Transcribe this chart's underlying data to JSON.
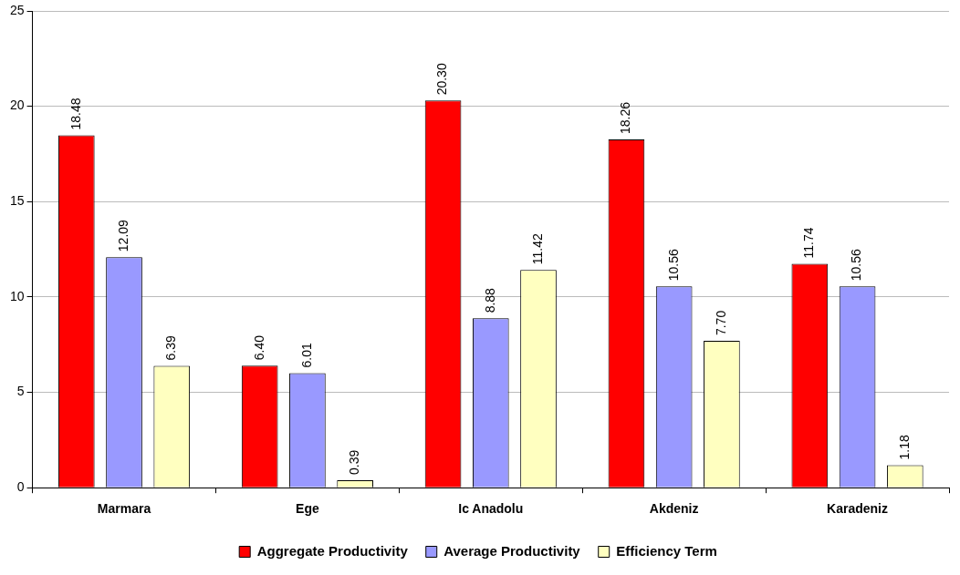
{
  "chart_data": {
    "type": "bar",
    "categories": [
      "Marmara",
      "Ege",
      "Ic Anadolu",
      "Akdeniz",
      "Karadeniz"
    ],
    "series": [
      {
        "name": "Aggregate Productivity",
        "color": "#ff0000",
        "values": [
          18.48,
          6.4,
          20.3,
          18.26,
          11.74
        ],
        "value_labels": [
          "18.48",
          "6.40",
          "20.30",
          "18.26",
          "11.74"
        ]
      },
      {
        "name": "Average Productivity",
        "color": "#9999ff",
        "values": [
          12.09,
          6.01,
          8.88,
          10.56,
          10.56
        ],
        "value_labels": [
          "12.09",
          "6.01",
          "8.88",
          "10.56",
          "10.56"
        ]
      },
      {
        "name": "Efficiency Term",
        "color": "#ffffc0",
        "values": [
          6.39,
          0.39,
          11.42,
          7.7,
          1.18
        ],
        "value_labels": [
          "6.39",
          "0.39",
          "11.42",
          "7.70",
          "1.18"
        ]
      }
    ],
    "ylim": [
      0,
      25
    ],
    "yticks": [
      0,
      5,
      10,
      15,
      20,
      25
    ],
    "grid": "y",
    "legend": "bottom"
  }
}
